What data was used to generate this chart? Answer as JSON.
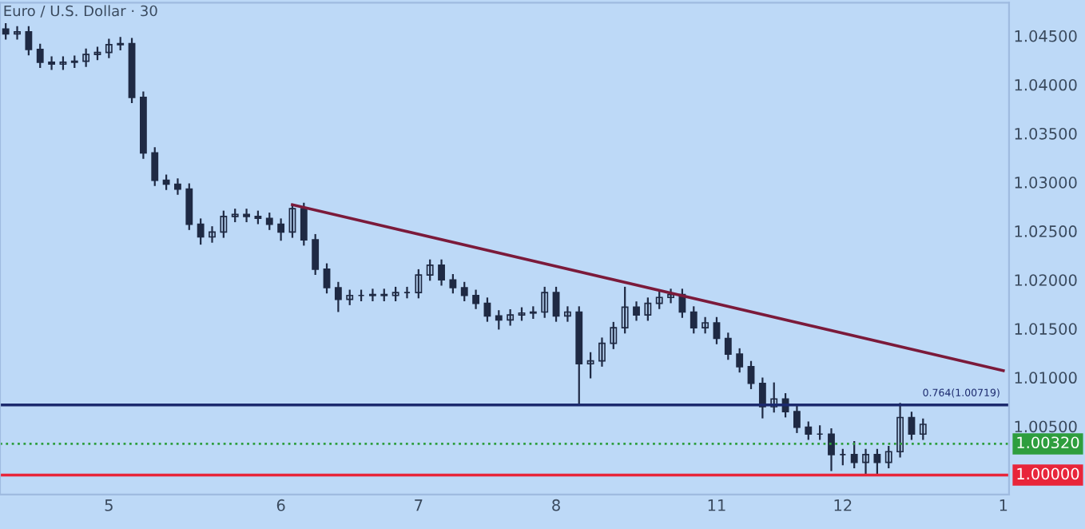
{
  "chart_data": {
    "type": "candlestick",
    "title": "Euro / U.S. Dollar · 30",
    "categories": [
      null,
      null,
      null,
      null,
      null,
      null,
      null,
      null,
      null,
      "5",
      null,
      null,
      null,
      null,
      null,
      null,
      null,
      null,
      null,
      null,
      null,
      null,
      null,
      null,
      "6",
      null,
      null,
      null,
      null,
      null,
      null,
      null,
      null,
      null,
      null,
      null,
      "7",
      null,
      null,
      null,
      null,
      null,
      null,
      null,
      null,
      null,
      null,
      null,
      "8",
      null,
      null,
      null,
      null,
      null,
      null,
      null,
      null,
      null,
      null,
      null,
      null,
      null,
      "11",
      null,
      null,
      null,
      null,
      null,
      null,
      null,
      null,
      null,
      null,
      "12",
      null,
      null,
      null,
      null,
      null,
      null,
      null,
      null,
      null,
      null,
      null,
      null,
      null,
      "1"
    ],
    "ohlc": [
      [
        1.0457,
        1.0462,
        1.0447,
        1.0452
      ],
      [
        1.0452,
        1.0459,
        1.0447,
        1.0454
      ],
      [
        1.0454,
        1.0459,
        1.0431,
        1.0436
      ],
      [
        1.0436,
        1.0441,
        1.0418,
        1.0423
      ],
      [
        1.0423,
        1.0428,
        1.0416,
        1.0421
      ],
      [
        1.0421,
        1.0428,
        1.0416,
        1.0423
      ],
      [
        1.0423,
        1.0429,
        1.0418,
        1.0424
      ],
      [
        1.0424,
        1.0436,
        1.0419,
        1.0431
      ],
      [
        1.0431,
        1.0438,
        1.0426,
        1.0433
      ],
      [
        1.0433,
        1.0446,
        1.0428,
        1.0441
      ],
      [
        1.0441,
        1.0448,
        1.0436,
        1.0442
      ],
      [
        1.0442,
        1.0447,
        1.0382,
        1.0387
      ],
      [
        1.0387,
        1.0392,
        1.0325,
        1.033
      ],
      [
        1.033,
        1.0335,
        1.0297,
        1.0302
      ],
      [
        1.0302,
        1.0307,
        1.0293,
        1.0298
      ],
      [
        1.0298,
        1.0303,
        1.0288,
        1.0293
      ],
      [
        1.0293,
        1.0298,
        1.0252,
        1.0257
      ],
      [
        1.0257,
        1.0262,
        1.0237,
        1.0244
      ],
      [
        1.0244,
        1.0254,
        1.0239,
        1.0249
      ],
      [
        1.0249,
        1.027,
        1.0244,
        1.0265
      ],
      [
        1.0265,
        1.0272,
        1.026,
        1.0267
      ],
      [
        1.0267,
        1.0272,
        1.026,
        1.0265
      ],
      [
        1.0265,
        1.027,
        1.0258,
        1.0263
      ],
      [
        1.0263,
        1.0268,
        1.0252,
        1.0257
      ],
      [
        1.0257,
        1.0262,
        1.0241,
        1.0249
      ],
      [
        1.0249,
        1.0277,
        1.0244,
        1.0273
      ],
      [
        1.0273,
        1.0278,
        1.0236,
        1.0241
      ],
      [
        1.0241,
        1.0246,
        1.0206,
        1.0211
      ],
      [
        1.0211,
        1.0216,
        1.0187,
        1.0192
      ],
      [
        1.0192,
        1.0197,
        1.0168,
        1.018
      ],
      [
        1.018,
        1.0189,
        1.0175,
        1.0184
      ],
      [
        1.0184,
        1.0189,
        1.0179,
        1.0184
      ],
      [
        1.0184,
        1.019,
        1.0179,
        1.0185
      ],
      [
        1.0185,
        1.019,
        1.0179,
        1.0184
      ],
      [
        1.0184,
        1.0192,
        1.0179,
        1.0187
      ],
      [
        1.0187,
        1.0192,
        1.0182,
        1.0187
      ],
      [
        1.0187,
        1.021,
        1.0182,
        1.0205
      ],
      [
        1.0205,
        1.022,
        1.02,
        1.0215
      ],
      [
        1.0215,
        1.022,
        1.0195,
        1.02
      ],
      [
        1.02,
        1.0205,
        1.0187,
        1.0192
      ],
      [
        1.0192,
        1.0197,
        1.0179,
        1.0184
      ],
      [
        1.0184,
        1.0189,
        1.0171,
        1.0176
      ],
      [
        1.0176,
        1.0181,
        1.0158,
        1.0163
      ],
      [
        1.0163,
        1.0168,
        1.015,
        1.0159
      ],
      [
        1.0159,
        1.0169,
        1.0154,
        1.0164
      ],
      [
        1.0164,
        1.0171,
        1.0159,
        1.0166
      ],
      [
        1.0166,
        1.0172,
        1.0161,
        1.0167
      ],
      [
        1.0167,
        1.0192,
        1.0162,
        1.0187
      ],
      [
        1.0187,
        1.0192,
        1.0158,
        1.0163
      ],
      [
        1.0163,
        1.0172,
        1.0158,
        1.0167
      ],
      [
        1.0167,
        1.0172,
        1.0073,
        1.0114
      ],
      [
        1.0114,
        1.0125,
        1.01,
        1.0117
      ],
      [
        1.0117,
        1.014,
        1.0112,
        1.0135
      ],
      [
        1.0135,
        1.0156,
        1.013,
        1.0151
      ],
      [
        1.0151,
        1.0192,
        1.0146,
        1.0172
      ],
      [
        1.0172,
        1.0177,
        1.0159,
        1.0164
      ],
      [
        1.0164,
        1.0181,
        1.0159,
        1.0176
      ],
      [
        1.0176,
        1.0187,
        1.0171,
        1.0182
      ],
      [
        1.0182,
        1.019,
        1.0177,
        1.0185
      ],
      [
        1.0185,
        1.019,
        1.0162,
        1.0167
      ],
      [
        1.0167,
        1.0172,
        1.0146,
        1.0151
      ],
      [
        1.0151,
        1.0161,
        1.0146,
        1.0156
      ],
      [
        1.0156,
        1.0161,
        1.0135,
        1.014
      ],
      [
        1.014,
        1.0145,
        1.0119,
        1.0124
      ],
      [
        1.0124,
        1.0129,
        1.0106,
        1.0111
      ],
      [
        1.0111,
        1.0116,
        1.0089,
        1.0094
      ],
      [
        1.0094,
        1.0099,
        1.0059,
        1.007
      ],
      [
        1.007,
        1.0094,
        1.0065,
        1.0078
      ],
      [
        1.0078,
        1.0083,
        1.006,
        1.0065
      ],
      [
        1.0065,
        1.007,
        1.0044,
        1.0049
      ],
      [
        1.0049,
        1.0054,
        1.0037,
        1.0042
      ],
      [
        1.0042,
        1.005,
        1.0037,
        1.0042
      ],
      [
        1.0042,
        1.0047,
        1.0005,
        1.0021
      ],
      [
        1.0021,
        1.0026,
        1.0011,
        1.0021
      ],
      [
        1.0021,
        1.0034,
        1.0008,
        1.0013
      ],
      [
        1.0013,
        1.0026,
        1.0002,
        1.0021
      ],
      [
        1.0021,
        1.0026,
        1.0002,
        1.0013
      ],
      [
        1.0013,
        1.0029,
        1.0008,
        1.0024
      ],
      [
        1.0024,
        1.0073,
        1.0019,
        1.0059
      ],
      [
        1.0059,
        1.0064,
        1.0037,
        1.0042
      ],
      [
        1.0042,
        1.0057,
        1.0037,
        1.0052
      ],
      null,
      null,
      null,
      null,
      null,
      null,
      null
    ],
    "color": "#1f2a44",
    "series": [
      {
        "type": "line",
        "values": [
          null,
          null,
          null,
          null,
          null,
          null,
          null,
          null,
          null,
          null,
          null,
          null,
          null,
          null,
          null,
          null,
          null,
          null,
          null,
          null,
          null,
          null,
          null,
          null,
          null,
          1.0277,
          null,
          null,
          null,
          null,
          null,
          null,
          null,
          null,
          null,
          null,
          null,
          null,
          null,
          null,
          null,
          null,
          null,
          null,
          null,
          null,
          null,
          null,
          null,
          null,
          null,
          null,
          null,
          null,
          null,
          null,
          null,
          null,
          null,
          null,
          null,
          null,
          null,
          null,
          null,
          null,
          null,
          null,
          null,
          null,
          null,
          null,
          null,
          null,
          null,
          null,
          null,
          null,
          null,
          null,
          null,
          null,
          null,
          null,
          null,
          null,
          null,
          1.0107
        ],
        "color": "#7b1a3a"
      }
    ],
    "ref_lines": [
      {
        "axis": "y",
        "value": 1.00719,
        "label": "0.764(1.00719)",
        "color": "#1c2a6e"
      },
      {
        "axis": "y",
        "value": 1.0032,
        "label": "1.00320",
        "color": "#2e9e3e",
        "line_style": "dotted"
      },
      {
        "axis": "y",
        "value": 1.0,
        "label": "1.00000",
        "color": "#e8253a"
      }
    ],
    "ylim": [
      0.998,
      1.0484
    ],
    "yticks": [
      {
        "value": 1.005,
        "label": "1.00500"
      },
      {
        "value": 1.01,
        "label": "1.01000"
      },
      {
        "value": 1.015,
        "label": "1.01500"
      },
      {
        "value": 1.02,
        "label": "1.02000"
      },
      {
        "value": 1.025,
        "label": "1.02500"
      },
      {
        "value": 1.03,
        "label": "1.03000"
      },
      {
        "value": 1.035,
        "label": "1.03500"
      },
      {
        "value": 1.04,
        "label": "1.04000"
      },
      {
        "value": 1.045,
        "label": "1.04500"
      }
    ],
    "grid": false
  }
}
